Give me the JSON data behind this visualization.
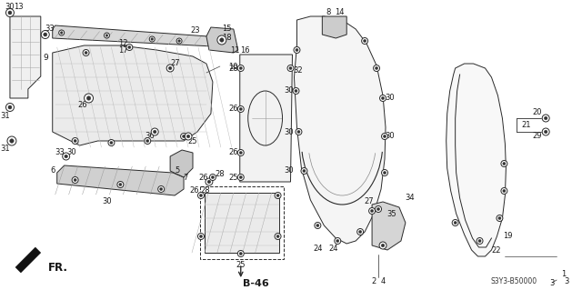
{
  "bg_color": "#ffffff",
  "diagram_code": "S3Y3-B50000",
  "ref_code": "B-46",
  "fr_label": "FR.",
  "part_color": "#2a2a2a",
  "light_gray": "#c8c8c8",
  "mid_gray": "#aaaaaa",
  "hatch_color": "#888888"
}
